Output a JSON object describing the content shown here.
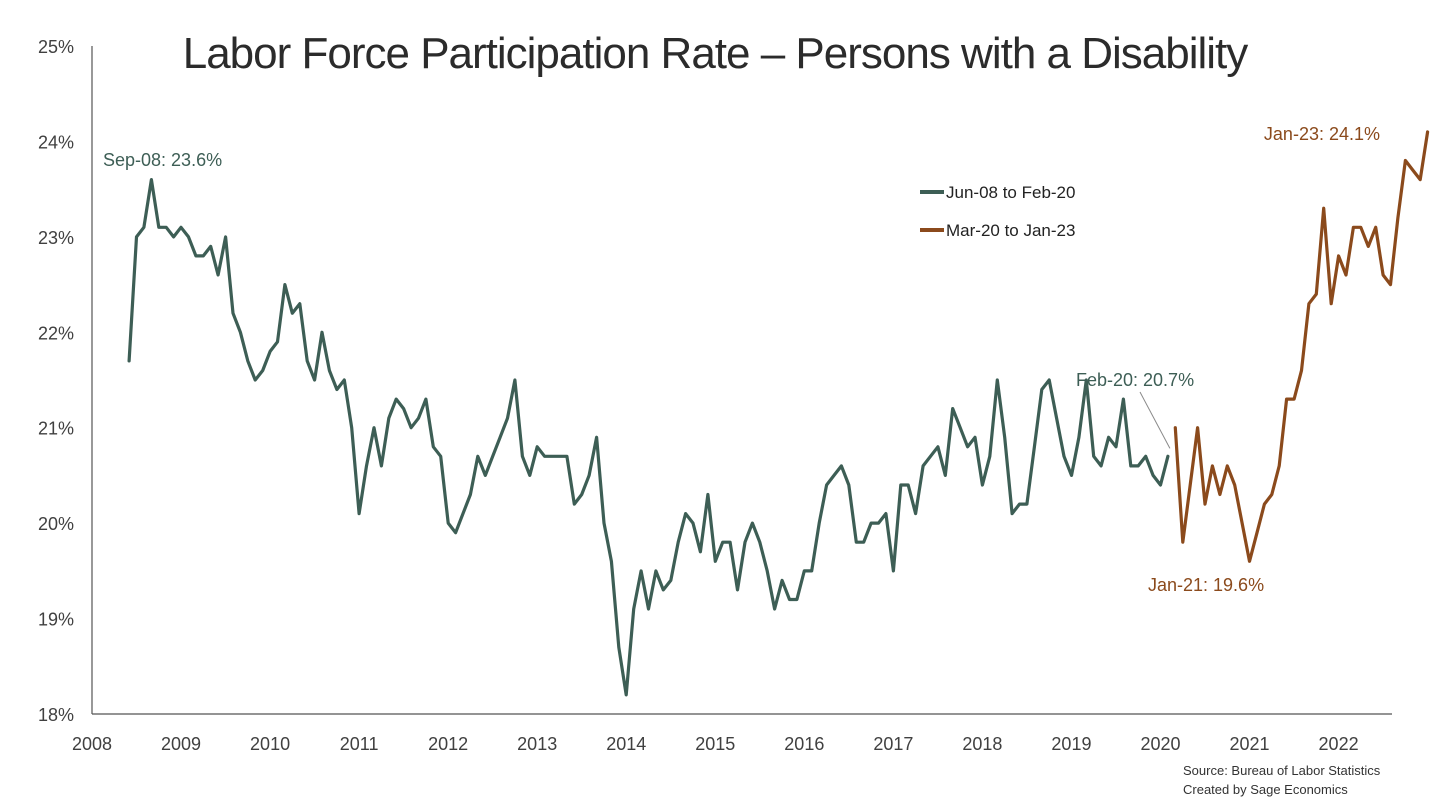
{
  "chart_data": {
    "type": "line",
    "title": "Labor Force Participation Rate – Persons with a Disability",
    "xlabel": "",
    "ylabel": "",
    "ylim": [
      18,
      25
    ],
    "y_ticks": [
      "18%",
      "19%",
      "20%",
      "21%",
      "22%",
      "23%",
      "24%",
      "25%"
    ],
    "x_ticks": [
      "2008",
      "2009",
      "2010",
      "2011",
      "2012",
      "2013",
      "2014",
      "2015",
      "2016",
      "2017",
      "2018",
      "2019",
      "2020",
      "2021",
      "2022"
    ],
    "grid": false,
    "legend_position": "upper-right",
    "series": [
      {
        "name": "Jun-08 to Feb-20",
        "color": "#3d5e55",
        "start": "2008-06",
        "values": [
          21.7,
          23.0,
          23.1,
          23.6,
          23.1,
          23.1,
          23.0,
          23.1,
          23.0,
          22.8,
          22.8,
          22.9,
          22.6,
          23.0,
          22.2,
          22.0,
          21.7,
          21.5,
          21.6,
          21.8,
          21.9,
          22.5,
          22.2,
          22.3,
          21.7,
          21.5,
          22.0,
          21.6,
          21.4,
          21.5,
          21.0,
          20.1,
          20.6,
          21.0,
          20.6,
          21.1,
          21.3,
          21.2,
          21.0,
          21.1,
          21.3,
          20.8,
          20.7,
          20.0,
          19.9,
          20.1,
          20.3,
          20.7,
          20.5,
          20.7,
          20.9,
          21.1,
          21.5,
          20.7,
          20.5,
          20.8,
          20.7,
          20.7,
          20.7,
          20.7,
          20.2,
          20.3,
          20.5,
          20.9,
          20.0,
          19.6,
          18.7,
          18.2,
          19.1,
          19.5,
          19.1,
          19.5,
          19.3,
          19.4,
          19.8,
          20.1,
          20.0,
          19.7,
          20.3,
          19.6,
          19.8,
          19.8,
          19.3,
          19.8,
          20.0,
          19.8,
          19.5,
          19.1,
          19.4,
          19.2,
          19.2,
          19.5,
          19.5,
          20.0,
          20.4,
          20.5,
          20.6,
          20.4,
          19.8,
          19.8,
          20.0,
          20.0,
          20.1,
          19.5,
          20.4,
          20.4,
          20.1,
          20.6,
          20.7,
          20.8,
          20.5,
          21.2,
          21.0,
          20.8,
          20.9,
          20.4,
          20.7,
          21.5,
          20.9,
          20.1,
          20.2,
          20.2,
          20.8,
          21.4,
          21.5,
          21.1,
          20.7,
          20.5,
          20.9,
          21.5,
          20.7,
          20.6,
          20.9,
          20.8,
          21.3,
          20.6,
          20.6,
          20.7,
          20.5,
          20.4,
          20.7
        ]
      },
      {
        "name": "Mar-20 to Jan-23",
        "color": "#8b4a1c",
        "start": "2020-03",
        "values": [
          21.0,
          19.8,
          20.4,
          21.0,
          20.2,
          20.6,
          20.3,
          20.6,
          20.4,
          20.0,
          19.6,
          19.9,
          20.2,
          20.3,
          20.6,
          21.3,
          21.3,
          21.6,
          22.3,
          22.4,
          23.3,
          22.3,
          22.8,
          22.6,
          23.1,
          23.1,
          22.9,
          23.1,
          22.6,
          22.5,
          23.2,
          23.8,
          23.7,
          23.6,
          24.1
        ]
      }
    ],
    "annotations": [
      {
        "text": "Sep-08: 23.6%",
        "color": "#3d5e55"
      },
      {
        "text": "Feb-20: 20.7%",
        "color": "#3d5e55"
      },
      {
        "text": "Jan-21: 19.6%",
        "color": "#8b4a1c"
      },
      {
        "text": "Jan-23: 24.1%",
        "color": "#8b4a1c"
      }
    ],
    "source_lines": [
      "Source: Bureau of Labor Statistics",
      "Created by Sage Economics"
    ]
  }
}
